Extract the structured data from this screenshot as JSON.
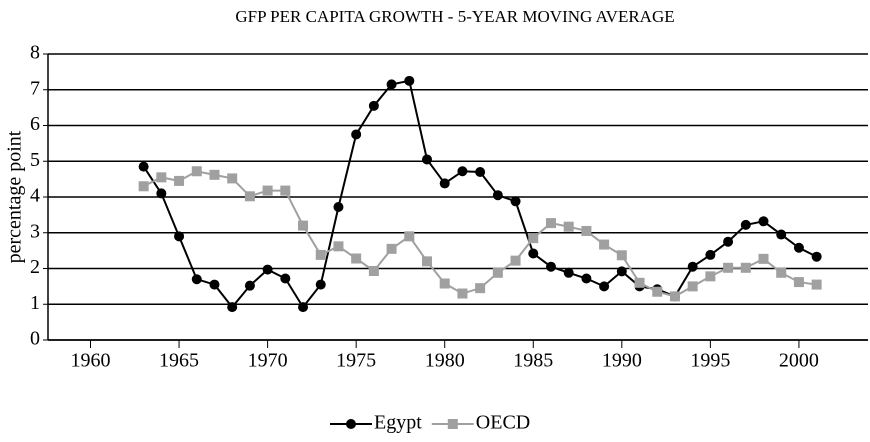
{
  "chart_data": {
    "type": "line",
    "title": "GFP PER CAPITA GROWTH - 5-YEAR MOVING AVERAGE",
    "y_label": "percentage point",
    "x": [
      1963,
      1964,
      1965,
      1966,
      1967,
      1968,
      1969,
      1970,
      1971,
      1972,
      1973,
      1974,
      1975,
      1976,
      1977,
      1978,
      1979,
      1980,
      1981,
      1982,
      1983,
      1984,
      1985,
      1986,
      1987,
      1988,
      1989,
      1990,
      1991,
      1992,
      1993,
      1994,
      1995,
      1996,
      1997,
      1998,
      1999,
      2000,
      2001
    ],
    "series": [
      {
        "name": "Egypt",
        "color": "#000000",
        "marker": "circle",
        "values": [
          4.85,
          4.1,
          2.9,
          1.7,
          1.55,
          0.92,
          1.52,
          1.97,
          1.72,
          0.92,
          1.55,
          3.72,
          5.75,
          6.55,
          7.15,
          7.25,
          5.05,
          4.38,
          4.72,
          4.7,
          4.05,
          3.88,
          2.42,
          2.05,
          1.88,
          1.72,
          1.5,
          1.92,
          1.5,
          1.42,
          1.22,
          2.05,
          2.38,
          2.75,
          3.22,
          3.32,
          2.95,
          2.58,
          2.33
        ]
      },
      {
        "name": "OECD",
        "color": "#a0a0a0",
        "marker": "square",
        "values": [
          4.3,
          4.55,
          4.45,
          4.72,
          4.62,
          4.52,
          4.02,
          4.18,
          4.18,
          3.2,
          2.38,
          2.62,
          2.28,
          1.93,
          2.55,
          2.9,
          2.2,
          1.58,
          1.3,
          1.45,
          1.88,
          2.22,
          2.85,
          3.27,
          3.17,
          3.05,
          2.67,
          2.37,
          1.6,
          1.35,
          1.22,
          1.5,
          1.78,
          2.02,
          2.02,
          2.27,
          1.88,
          1.62,
          1.55
        ]
      }
    ],
    "xlim": [
      1957.6,
      2003.9
    ],
    "xticks": [
      1960,
      1965,
      1970,
      1975,
      1980,
      1985,
      1990,
      1995,
      2000
    ],
    "ylim": [
      0,
      8
    ],
    "yticks": [
      0,
      1,
      2,
      3,
      4,
      5,
      6,
      7,
      8
    ],
    "grid": true,
    "legend": "bottom"
  }
}
